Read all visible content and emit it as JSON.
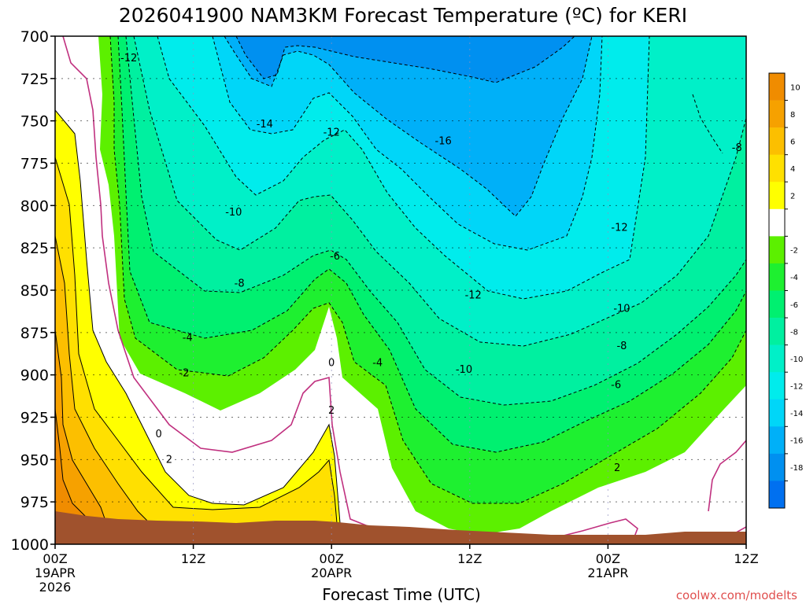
{
  "chart_data": {
    "type": "contour",
    "title": "2026041900 NAM3KM Forecast Temperature (ºC) for KERI",
    "xlabel": "Forecast Time (UTC)",
    "ylabel": "",
    "credit": "coolwx.com/modelts",
    "forecast_hours": [
      0,
      60
    ],
    "pressure_range_hPa": [
      700,
      1000
    ],
    "x_ticks": [
      {
        "hour": 0,
        "lines": [
          "00Z",
          "19APR",
          "2026"
        ]
      },
      {
        "hour": 12,
        "lines": [
          "12Z"
        ]
      },
      {
        "hour": 24,
        "lines": [
          "00Z",
          "20APR"
        ]
      },
      {
        "hour": 36,
        "lines": [
          "12Z"
        ]
      },
      {
        "hour": 48,
        "lines": [
          "00Z",
          "21APR"
        ]
      },
      {
        "hour": 60,
        "lines": [
          "12Z"
        ]
      }
    ],
    "y_ticks": [
      700,
      725,
      750,
      775,
      800,
      825,
      850,
      875,
      900,
      925,
      950,
      975,
      1000
    ],
    "grid": true,
    "legend": "colorbar-right",
    "colorbar_levels": [
      {
        "label": "10",
        "color": "#f08c00"
      },
      {
        "label": "8",
        "color": "#f6a100"
      },
      {
        "label": "6",
        "color": "#fcbf00"
      },
      {
        "label": "4",
        "color": "#ffe000"
      },
      {
        "label": "2",
        "color": "#ffff00"
      },
      {
        "label": "",
        "color": "#ffffff"
      },
      {
        "label": "-2",
        "color": "#5cf000"
      },
      {
        "label": "-4",
        "color": "#1ef030"
      },
      {
        "label": "-6",
        "color": "#00f070"
      },
      {
        "label": "-8",
        "color": "#00f0a0"
      },
      {
        "label": "-10",
        "color": "#00f0c8"
      },
      {
        "label": "-12",
        "color": "#00ecec"
      },
      {
        "label": "-14",
        "color": "#00d6f8"
      },
      {
        "label": "-16",
        "color": "#00b0f8"
      },
      {
        "label": "-18",
        "color": "#0090f0"
      },
      {
        "label": "",
        "color": "#0070f0"
      }
    ],
    "surface_color": "#a0522d",
    "freezing_line_color": "#c0307f",
    "contour_labels": [
      {
        "text": "-12",
        "hour": 6.4,
        "p": 713
      },
      {
        "text": "-14",
        "hour": 18.2,
        "p": 752
      },
      {
        "text": "-12",
        "hour": 24.0,
        "p": 757
      },
      {
        "text": "-16",
        "hour": 33.7,
        "p": 762
      },
      {
        "text": "-8",
        "hour": 59.2,
        "p": 766
      },
      {
        "text": "-10",
        "hour": 15.5,
        "p": 804
      },
      {
        "text": "-12",
        "hour": 49.0,
        "p": 813
      },
      {
        "text": "-6",
        "hour": 24.3,
        "p": 830
      },
      {
        "text": "-8",
        "hour": 16.0,
        "p": 846
      },
      {
        "text": "-12",
        "hour": 36.3,
        "p": 853
      },
      {
        "text": "-10",
        "hour": 49.2,
        "p": 861
      },
      {
        "text": "-4",
        "hour": 11.5,
        "p": 878
      },
      {
        "text": "-8",
        "hour": 49.2,
        "p": 883
      },
      {
        "text": "-10",
        "hour": 35.5,
        "p": 897
      },
      {
        "text": "-4",
        "hour": 28.0,
        "p": 893
      },
      {
        "text": "0",
        "hour": 24.0,
        "p": 893
      },
      {
        "text": "-2",
        "hour": 11.2,
        "p": 899
      },
      {
        "text": "-6",
        "hour": 48.7,
        "p": 906
      },
      {
        "text": "2",
        "hour": 24.0,
        "p": 921
      },
      {
        "text": "0",
        "hour": 9.0,
        "p": 935
      },
      {
        "text": "2",
        "hour": 9.9,
        "p": 950
      },
      {
        "text": "2",
        "hour": 48.8,
        "p": 955
      }
    ]
  }
}
